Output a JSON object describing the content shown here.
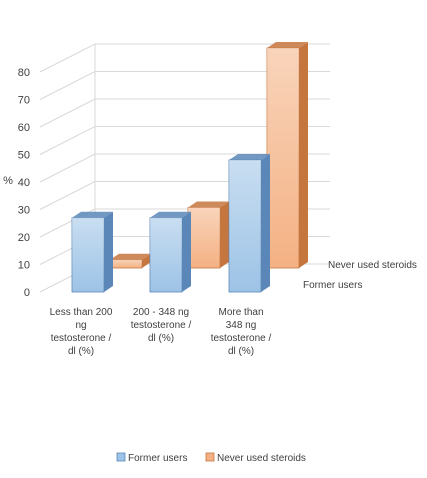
{
  "chart_data": {
    "type": "bar",
    "subtype": "3d-clustered-column",
    "ylabel": "%",
    "ylim": [
      0,
      80
    ],
    "yticks": [
      "0",
      "10",
      "20",
      "30",
      "40",
      "50",
      "60",
      "70",
      "80"
    ],
    "grid": true,
    "categories": [
      [
        "Less than 200",
        "ng",
        "testosterone /",
        "dl (%)"
      ],
      [
        "200 - 348 ng",
        "testosterone /",
        "dl (%)"
      ],
      [
        "More than",
        "348 ng",
        "testosterone /",
        "dl (%)"
      ]
    ],
    "series": [
      {
        "name": "Former users",
        "values": [
          27,
          27,
          48
        ]
      },
      {
        "name": "Never used steroids",
        "values": [
          3,
          22,
          80
        ]
      }
    ],
    "depth_axis_labels": [
      "Never used steroids",
      "Former users"
    ],
    "legend": {
      "position": "bottom",
      "items": [
        "Former users",
        "Never used steroids"
      ]
    },
    "colors": {
      "series": [
        "#9dc3e6",
        "#f4b183"
      ],
      "series_dark": [
        "#5b87b8",
        "#c5763e"
      ],
      "grid": "#d9d9d9"
    }
  }
}
